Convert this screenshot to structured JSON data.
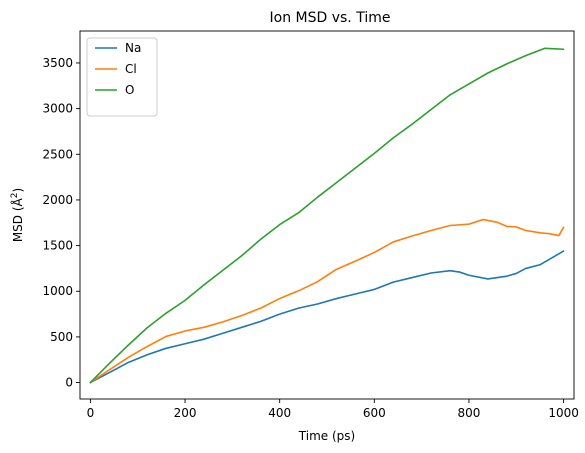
{
  "chart_data": {
    "type": "line",
    "title": "Ion MSD vs. Time",
    "xlabel": "Time (ps)",
    "ylabel_main": "MSD (",
    "ylabel_unit": "Å",
    "ylabel_sup": "2",
    "ylabel_close": ")",
    "xlim": [
      -22,
      1022
    ],
    "ylim": [
      -180,
      3850
    ],
    "xticks": [
      0,
      200,
      400,
      600,
      800,
      1000
    ],
    "yticks": [
      0,
      500,
      1000,
      1500,
      2000,
      2500,
      3000,
      3500
    ],
    "legend_position": "top-left",
    "series": [
      {
        "name": "Na",
        "color": "#1f77b4",
        "x": [
          0,
          40,
          80,
          120,
          160,
          200,
          240,
          280,
          320,
          360,
          400,
          440,
          480,
          520,
          560,
          600,
          640,
          680,
          720,
          760,
          780,
          800,
          840,
          880,
          900,
          920,
          950,
          970,
          1000
        ],
        "y": [
          0,
          110,
          220,
          305,
          375,
          425,
          475,
          540,
          605,
          670,
          750,
          815,
          860,
          920,
          970,
          1020,
          1100,
          1150,
          1200,
          1225,
          1210,
          1175,
          1135,
          1165,
          1195,
          1250,
          1290,
          1350,
          1440
        ]
      },
      {
        "name": "Cl",
        "color": "#ff7f0e",
        "x": [
          0,
          40,
          80,
          120,
          160,
          200,
          240,
          280,
          320,
          360,
          400,
          440,
          480,
          520,
          560,
          600,
          640,
          680,
          720,
          760,
          800,
          830,
          860,
          880,
          900,
          920,
          950,
          970,
          990,
          1000
        ],
        "y": [
          0,
          140,
          275,
          395,
          505,
          565,
          605,
          665,
          735,
          815,
          920,
          1005,
          1105,
          1240,
          1330,
          1425,
          1540,
          1605,
          1665,
          1720,
          1735,
          1785,
          1755,
          1710,
          1705,
          1665,
          1640,
          1630,
          1610,
          1700
        ]
      },
      {
        "name": "O",
        "color": "#2ca02c",
        "x": [
          0,
          40,
          80,
          120,
          160,
          200,
          240,
          280,
          320,
          360,
          400,
          440,
          480,
          520,
          560,
          600,
          640,
          680,
          720,
          760,
          800,
          840,
          880,
          920,
          960,
          1000
        ],
        "y": [
          0,
          210,
          410,
          600,
          760,
          900,
          1070,
          1230,
          1390,
          1570,
          1730,
          1860,
          2030,
          2190,
          2350,
          2510,
          2680,
          2830,
          2990,
          3150,
          3270,
          3390,
          3490,
          3580,
          3660,
          3650
        ]
      }
    ]
  }
}
